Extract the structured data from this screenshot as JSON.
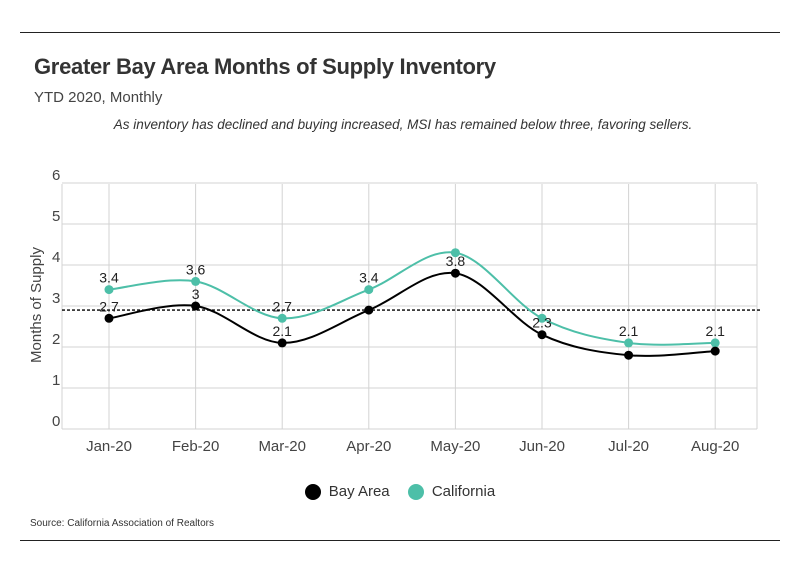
{
  "header": {
    "title": "Greater Bay Area Months of Supply Inventory",
    "subtitle": "YTD 2020, Monthly",
    "note": "As inventory has declined and buying increased, MSI has remained below three, favoring sellers."
  },
  "footer": {
    "source": "Source:  California Association of Realtors"
  },
  "chart_data": {
    "type": "line",
    "title": "Greater Bay Area Months of Supply Inventory",
    "subtitle": "YTD 2020, Monthly",
    "xlabel": "",
    "ylabel": "Months of Supply",
    "categories": [
      "Jan-20",
      "Feb-20",
      "Mar-20",
      "Apr-20",
      "May-20",
      "Jun-20",
      "Jul-20",
      "Aug-20"
    ],
    "yticks": [
      0,
      1,
      2,
      3,
      4,
      5,
      6
    ],
    "ylim": [
      0,
      6
    ],
    "grid": true,
    "legend_position": "bottom",
    "reference_line": {
      "value": 2.9,
      "style": "dashed"
    },
    "series": [
      {
        "name": "Bay Area",
        "color": "#000000",
        "values": [
          2.7,
          3.0,
          2.1,
          2.9,
          3.8,
          2.3,
          1.8,
          1.9
        ],
        "labels": [
          "2.7",
          "3",
          "2.1",
          "",
          "3.8",
          "2.3",
          "",
          ""
        ]
      },
      {
        "name": "California",
        "color": "#4dbfa8",
        "values": [
          3.4,
          3.6,
          2.7,
          3.4,
          4.3,
          2.7,
          2.1,
          2.1
        ],
        "labels": [
          "3.4",
          "3.6",
          "2.7",
          "3.4",
          "",
          "",
          "2.1",
          "2.1"
        ]
      }
    ]
  }
}
